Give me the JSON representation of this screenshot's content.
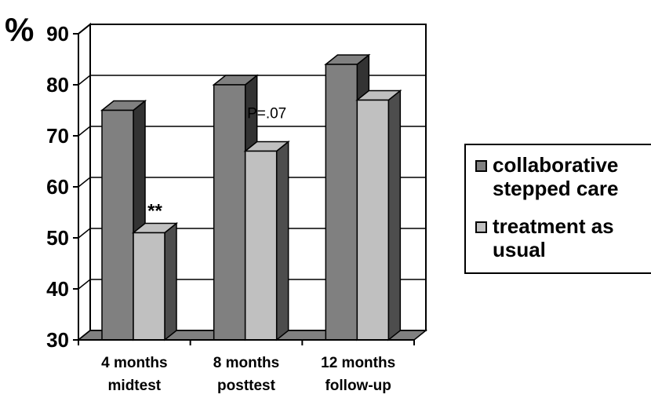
{
  "chart_data": {
    "type": "bar",
    "y_unit_label": "%",
    "categories": [
      [
        "4 months",
        "midtest"
      ],
      [
        "8 months",
        "posttest"
      ],
      [
        "12 months",
        "follow-up"
      ]
    ],
    "series": [
      {
        "name": "collaborative stepped care",
        "values": [
          75,
          80,
          84
        ],
        "color": "#808080"
      },
      {
        "name": "treatment as usual",
        "values": [
          51,
          67,
          77
        ],
        "color": "#c0c0c0"
      }
    ],
    "ylim": [
      30,
      90
    ],
    "yticks": [
      30,
      40,
      50,
      60,
      70,
      80,
      90
    ],
    "grid": true,
    "legend_position": "right",
    "annotations": [
      {
        "text": "**",
        "category_index": 0,
        "series_index": 1
      },
      {
        "text": "P=.07",
        "category_index": 1,
        "series_index": 1
      }
    ]
  },
  "legend": {
    "items": [
      {
        "label": "collaborative\nstepped care",
        "color": "#808080"
      },
      {
        "label": "treatment as\nusual",
        "color": "#c0c0c0"
      }
    ]
  }
}
